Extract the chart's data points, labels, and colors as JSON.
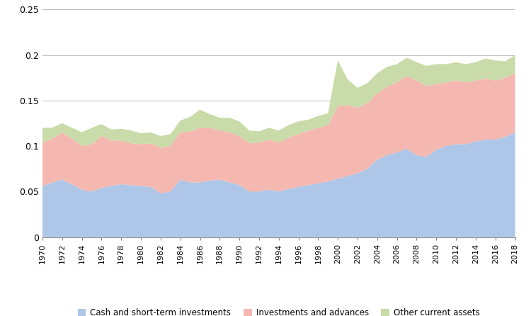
{
  "years": [
    1970,
    1971,
    1972,
    1973,
    1974,
    1975,
    1976,
    1977,
    1978,
    1979,
    1980,
    1981,
    1982,
    1983,
    1984,
    1985,
    1986,
    1987,
    1988,
    1989,
    1990,
    1991,
    1992,
    1993,
    1994,
    1995,
    1996,
    1997,
    1998,
    1999,
    2000,
    2001,
    2002,
    2003,
    2004,
    2005,
    2006,
    2007,
    2008,
    2009,
    2010,
    2011,
    2012,
    2013,
    2014,
    2015,
    2016,
    2017,
    2018
  ],
  "cash": [
    0.056,
    0.06,
    0.063,
    0.058,
    0.052,
    0.05,
    0.054,
    0.056,
    0.058,
    0.057,
    0.056,
    0.055,
    0.048,
    0.05,
    0.063,
    0.06,
    0.06,
    0.062,
    0.063,
    0.06,
    0.057,
    0.05,
    0.05,
    0.052,
    0.05,
    0.053,
    0.055,
    0.057,
    0.059,
    0.061,
    0.064,
    0.067,
    0.07,
    0.075,
    0.085,
    0.09,
    0.093,
    0.097,
    0.09,
    0.088,
    0.096,
    0.1,
    0.102,
    0.102,
    0.105,
    0.107,
    0.107,
    0.11,
    0.115
  ],
  "investments": [
    0.048,
    0.048,
    0.052,
    0.05,
    0.048,
    0.052,
    0.057,
    0.05,
    0.048,
    0.046,
    0.046,
    0.048,
    0.05,
    0.05,
    0.052,
    0.056,
    0.06,
    0.058,
    0.054,
    0.055,
    0.054,
    0.053,
    0.054,
    0.055,
    0.054,
    0.056,
    0.058,
    0.06,
    0.061,
    0.062,
    0.08,
    0.078,
    0.072,
    0.072,
    0.073,
    0.075,
    0.077,
    0.08,
    0.082,
    0.078,
    0.072,
    0.07,
    0.07,
    0.068,
    0.067,
    0.067,
    0.065,
    0.065,
    0.065
  ],
  "other": [
    0.016,
    0.012,
    0.01,
    0.012,
    0.015,
    0.018,
    0.013,
    0.012,
    0.013,
    0.014,
    0.012,
    0.012,
    0.013,
    0.013,
    0.013,
    0.016,
    0.02,
    0.015,
    0.014,
    0.016,
    0.016,
    0.014,
    0.012,
    0.013,
    0.013,
    0.014,
    0.014,
    0.012,
    0.013,
    0.013,
    0.05,
    0.028,
    0.022,
    0.022,
    0.022,
    0.022,
    0.02,
    0.02,
    0.02,
    0.022,
    0.022,
    0.02,
    0.02,
    0.02,
    0.02,
    0.022,
    0.022,
    0.018,
    0.02
  ],
  "color_cash": "#aec6e8",
  "color_investments": "#f4b8b0",
  "color_other": "#c8dba8",
  "label_cash": "Cash and short-term investments",
  "label_investments": "Investments and advances",
  "label_other": "Other current assets",
  "ylim": [
    0,
    0.25
  ],
  "yticks": [
    0,
    0.05,
    0.1,
    0.15,
    0.2,
    0.25
  ],
  "figsize": [
    7.5,
    4.46
  ],
  "dpi": 100
}
